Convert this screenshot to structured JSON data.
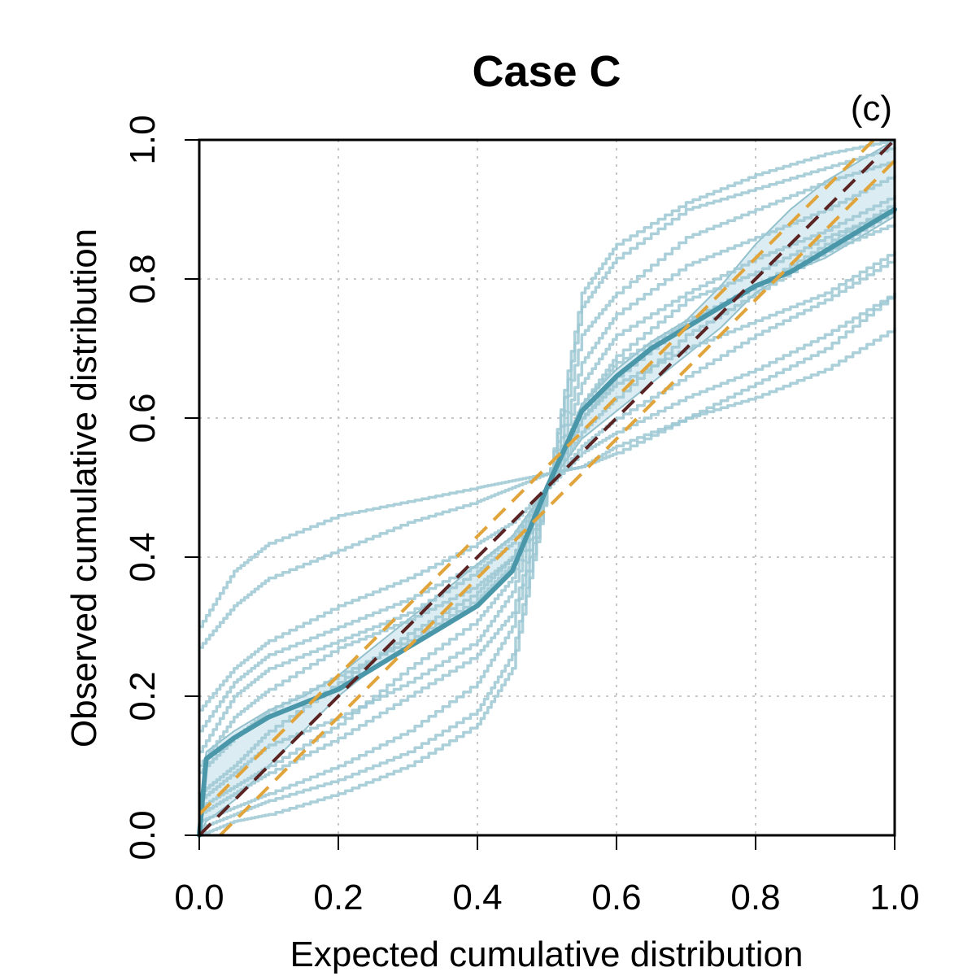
{
  "chart_data": {
    "type": "line",
    "title": "Case C",
    "panel_label": "(c)",
    "xlabel": "Expected cumulative distribution",
    "ylabel": "Observed cumulative distribution",
    "xlim": [
      0,
      1
    ],
    "ylim": [
      0,
      1
    ],
    "xticks": [
      "0.0",
      "0.2",
      "0.4",
      "0.6",
      "0.8",
      "1.0"
    ],
    "yticks": [
      "0.0",
      "0.2",
      "0.4",
      "0.6",
      "0.8",
      "1.0"
    ],
    "grid": true,
    "legend": "none",
    "colors": {
      "realization": "#9cc8d4",
      "median": "#4a97aa",
      "band_fill": "#cfe6ee",
      "confidence": "#e0a43a",
      "reference": "#5a2424"
    },
    "series": [
      {
        "role": "realization",
        "x": [
          0,
          0.05,
          0.1,
          0.2,
          0.3,
          0.4,
          0.45,
          0.5,
          0.55,
          0.6,
          0.7,
          0.8,
          0.9,
          1
        ],
        "y": [
          0.3,
          0.38,
          0.42,
          0.46,
          0.48,
          0.5,
          0.51,
          0.52,
          0.53,
          0.55,
          0.6,
          0.65,
          0.7,
          0.78
        ]
      },
      {
        "role": "realization",
        "x": [
          0,
          0.05,
          0.1,
          0.2,
          0.3,
          0.4,
          0.45,
          0.5,
          0.55,
          0.6,
          0.7,
          0.8,
          0.9,
          1
        ],
        "y": [
          0.27,
          0.33,
          0.37,
          0.41,
          0.45,
          0.48,
          0.5,
          0.52,
          0.53,
          0.56,
          0.6,
          0.63,
          0.67,
          0.73
        ]
      },
      {
        "role": "realization",
        "x": [
          0,
          0.05,
          0.1,
          0.2,
          0.3,
          0.4,
          0.45,
          0.5,
          0.55,
          0.6,
          0.7,
          0.8,
          0.9,
          1
        ],
        "y": [
          0.18,
          0.24,
          0.28,
          0.33,
          0.37,
          0.42,
          0.45,
          0.5,
          0.55,
          0.58,
          0.63,
          0.67,
          0.72,
          0.78
        ]
      },
      {
        "role": "realization",
        "x": [
          0,
          0.05,
          0.1,
          0.2,
          0.3,
          0.4,
          0.45,
          0.5,
          0.55,
          0.6,
          0.7,
          0.8,
          0.9,
          1
        ],
        "y": [
          0.15,
          0.22,
          0.26,
          0.3,
          0.34,
          0.39,
          0.43,
          0.5,
          0.56,
          0.6,
          0.66,
          0.72,
          0.77,
          0.83
        ]
      },
      {
        "role": "realization",
        "x": [
          0,
          0.05,
          0.1,
          0.2,
          0.3,
          0.4,
          0.45,
          0.5,
          0.55,
          0.6,
          0.7,
          0.8,
          0.9,
          1
        ],
        "y": [
          0.12,
          0.2,
          0.24,
          0.28,
          0.32,
          0.38,
          0.42,
          0.5,
          0.58,
          0.63,
          0.72,
          0.78,
          0.84,
          0.9
        ]
      },
      {
        "role": "realization",
        "x": [
          0,
          0.05,
          0.1,
          0.2,
          0.3,
          0.4,
          0.45,
          0.5,
          0.55,
          0.6,
          0.7,
          0.8,
          0.9,
          1
        ],
        "y": [
          0.09,
          0.14,
          0.18,
          0.23,
          0.28,
          0.34,
          0.39,
          0.5,
          0.6,
          0.66,
          0.74,
          0.79,
          0.85,
          0.91
        ]
      },
      {
        "role": "realization",
        "x": [
          0,
          0.05,
          0.1,
          0.2,
          0.3,
          0.4,
          0.45,
          0.5,
          0.55,
          0.6,
          0.7,
          0.8,
          0.9,
          1
        ],
        "y": [
          0.05,
          0.09,
          0.13,
          0.17,
          0.22,
          0.28,
          0.35,
          0.5,
          0.65,
          0.72,
          0.78,
          0.83,
          0.87,
          0.92
        ]
      },
      {
        "role": "realization",
        "x": [
          0,
          0.05,
          0.1,
          0.2,
          0.3,
          0.4,
          0.45,
          0.5,
          0.55,
          0.6,
          0.7,
          0.8,
          0.9,
          1
        ],
        "y": [
          0.03,
          0.06,
          0.09,
          0.14,
          0.2,
          0.26,
          0.32,
          0.5,
          0.68,
          0.75,
          0.82,
          0.86,
          0.9,
          0.95
        ]
      },
      {
        "role": "realization",
        "x": [
          0,
          0.05,
          0.1,
          0.2,
          0.3,
          0.4,
          0.45,
          0.5,
          0.55,
          0.6,
          0.7,
          0.8,
          0.9,
          1
        ],
        "y": [
          0.02,
          0.04,
          0.06,
          0.1,
          0.15,
          0.22,
          0.3,
          0.5,
          0.72,
          0.78,
          0.86,
          0.9,
          0.94,
          0.97
        ]
      },
      {
        "role": "realization",
        "x": [
          0,
          0.05,
          0.1,
          0.2,
          0.3,
          0.4,
          0.45,
          0.5,
          0.55,
          0.6,
          0.7,
          0.8,
          0.9,
          1
        ],
        "y": [
          0.01,
          0.03,
          0.05,
          0.08,
          0.12,
          0.18,
          0.26,
          0.5,
          0.76,
          0.83,
          0.9,
          0.93,
          0.96,
          0.99
        ]
      },
      {
        "role": "realization",
        "x": [
          0,
          0.05,
          0.1,
          0.2,
          0.3,
          0.4,
          0.45,
          0.5,
          0.55,
          0.6,
          0.7,
          0.8,
          0.9,
          1
        ],
        "y": [
          0.0,
          0.02,
          0.03,
          0.06,
          0.1,
          0.16,
          0.24,
          0.5,
          0.78,
          0.85,
          0.91,
          0.95,
          0.98,
          1.0
        ]
      },
      {
        "role": "realization",
        "x": [
          0,
          0.05,
          0.1,
          0.2,
          0.3,
          0.4,
          0.45,
          0.5,
          0.55,
          0.6,
          0.7,
          0.8,
          0.9,
          1
        ],
        "y": [
          0.1,
          0.17,
          0.21,
          0.27,
          0.31,
          0.36,
          0.4,
          0.5,
          0.6,
          0.65,
          0.7,
          0.74,
          0.78,
          0.84
        ]
      },
      {
        "role": "realization",
        "x": [
          0,
          0.05,
          0.1,
          0.2,
          0.3,
          0.4,
          0.45,
          0.5,
          0.55,
          0.6,
          0.7,
          0.8,
          0.9,
          1
        ],
        "y": [
          0.06,
          0.1,
          0.15,
          0.22,
          0.29,
          0.35,
          0.4,
          0.5,
          0.62,
          0.69,
          0.77,
          0.81,
          0.86,
          0.9
        ]
      },
      {
        "role": "realization",
        "x": [
          0,
          0.05,
          0.1,
          0.2,
          0.3,
          0.4,
          0.45,
          0.5,
          0.55,
          0.6,
          0.7,
          0.8,
          0.9,
          1
        ],
        "y": [
          0.04,
          0.07,
          0.1,
          0.16,
          0.24,
          0.31,
          0.37,
          0.5,
          0.62,
          0.68,
          0.74,
          0.79,
          0.84,
          0.88
        ]
      },
      {
        "role": "median",
        "x": [
          0,
          0.01,
          0.05,
          0.1,
          0.15,
          0.2,
          0.25,
          0.3,
          0.35,
          0.4,
          0.45,
          0.5,
          0.55,
          0.6,
          0.65,
          0.7,
          0.75,
          0.8,
          0.85,
          0.9,
          0.95,
          1
        ],
        "y": [
          0.0,
          0.11,
          0.14,
          0.17,
          0.19,
          0.21,
          0.24,
          0.27,
          0.3,
          0.33,
          0.38,
          0.5,
          0.61,
          0.66,
          0.7,
          0.73,
          0.76,
          0.79,
          0.81,
          0.84,
          0.87,
          0.9
        ]
      }
    ],
    "band": {
      "x": [
        0,
        0.01,
        0.05,
        0.1,
        0.15,
        0.2,
        0.25,
        0.3,
        0.35,
        0.4,
        0.45,
        0.5,
        0.55,
        0.6,
        0.65,
        0.7,
        0.75,
        0.8,
        0.85,
        0.9,
        0.95,
        1
      ],
      "upper": [
        0.02,
        0.12,
        0.15,
        0.18,
        0.2,
        0.23,
        0.27,
        0.31,
        0.35,
        0.39,
        0.43,
        0.5,
        0.62,
        0.67,
        0.71,
        0.74,
        0.79,
        0.85,
        0.9,
        0.94,
        0.97,
        1.0
      ],
      "lower": [
        0.0,
        0.02,
        0.05,
        0.1,
        0.15,
        0.2,
        0.24,
        0.27,
        0.3,
        0.33,
        0.38,
        0.5,
        0.57,
        0.61,
        0.65,
        0.69,
        0.73,
        0.78,
        0.81,
        0.83,
        0.86,
        0.89
      ]
    },
    "confidence_bounds": [
      {
        "x": [
          0,
          1
        ],
        "y": [
          0.03,
          1.03
        ]
      },
      {
        "x": [
          0,
          1
        ],
        "y": [
          -0.03,
          0.97
        ]
      }
    ],
    "reference": {
      "x": [
        0,
        1
      ],
      "y": [
        0,
        1
      ]
    }
  }
}
